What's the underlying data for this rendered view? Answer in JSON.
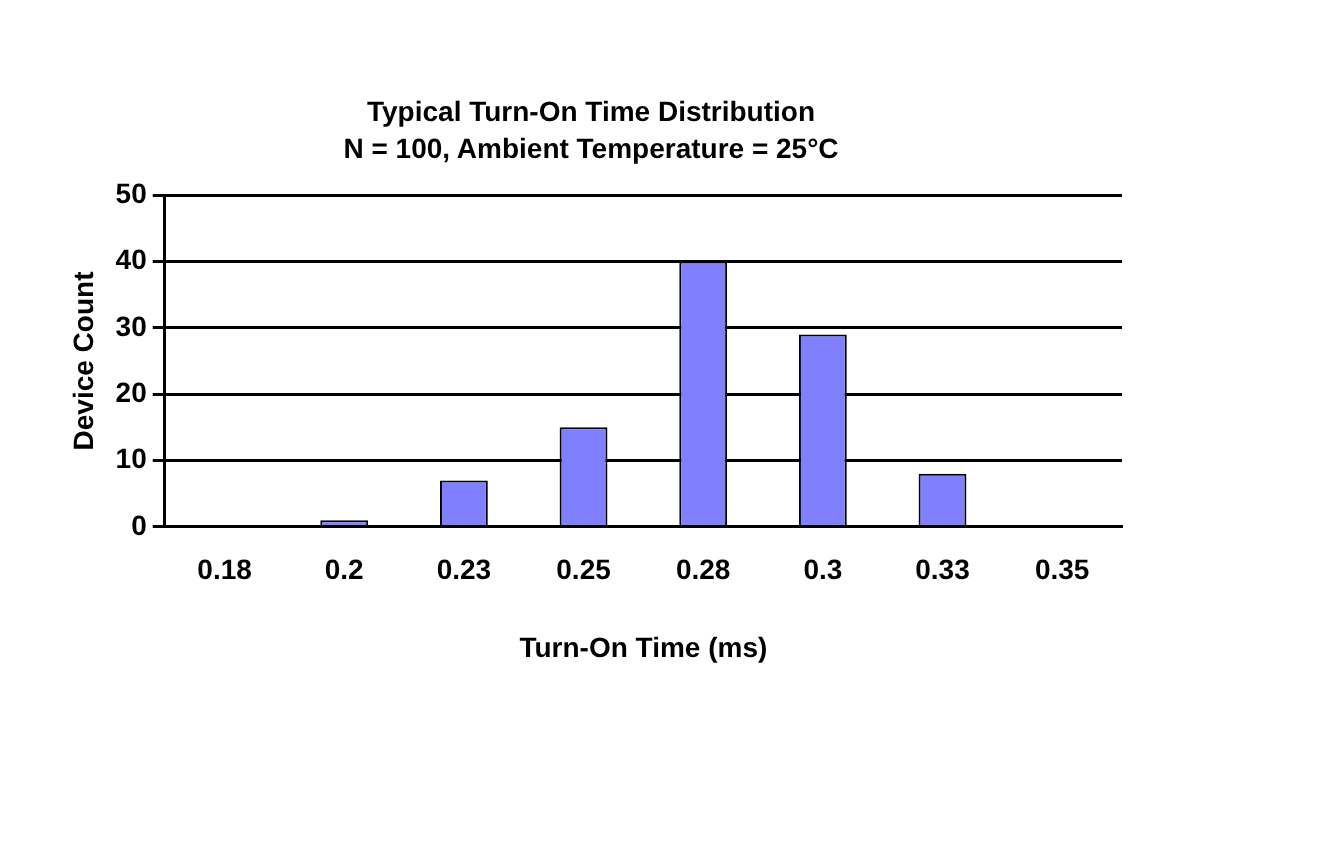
{
  "chart_data": {
    "type": "bar",
    "title": "Typical Turn-On Time Distribution",
    "subtitle": "N = 100, Ambient Temperature = 25°C",
    "xlabel": "Turn-On Time (ms)",
    "ylabel": "Device Count",
    "categories": [
      "0.18",
      "0.2",
      "0.23",
      "0.25",
      "0.28",
      "0.3",
      "0.33",
      "0.35"
    ],
    "values": [
      0,
      1,
      7,
      15,
      40,
      29,
      8,
      0
    ],
    "color": "#8080ff",
    "ylim": [
      0,
      50
    ],
    "yticks": [
      0,
      10,
      20,
      30,
      40,
      50
    ],
    "grid": "y",
    "legend": false
  }
}
